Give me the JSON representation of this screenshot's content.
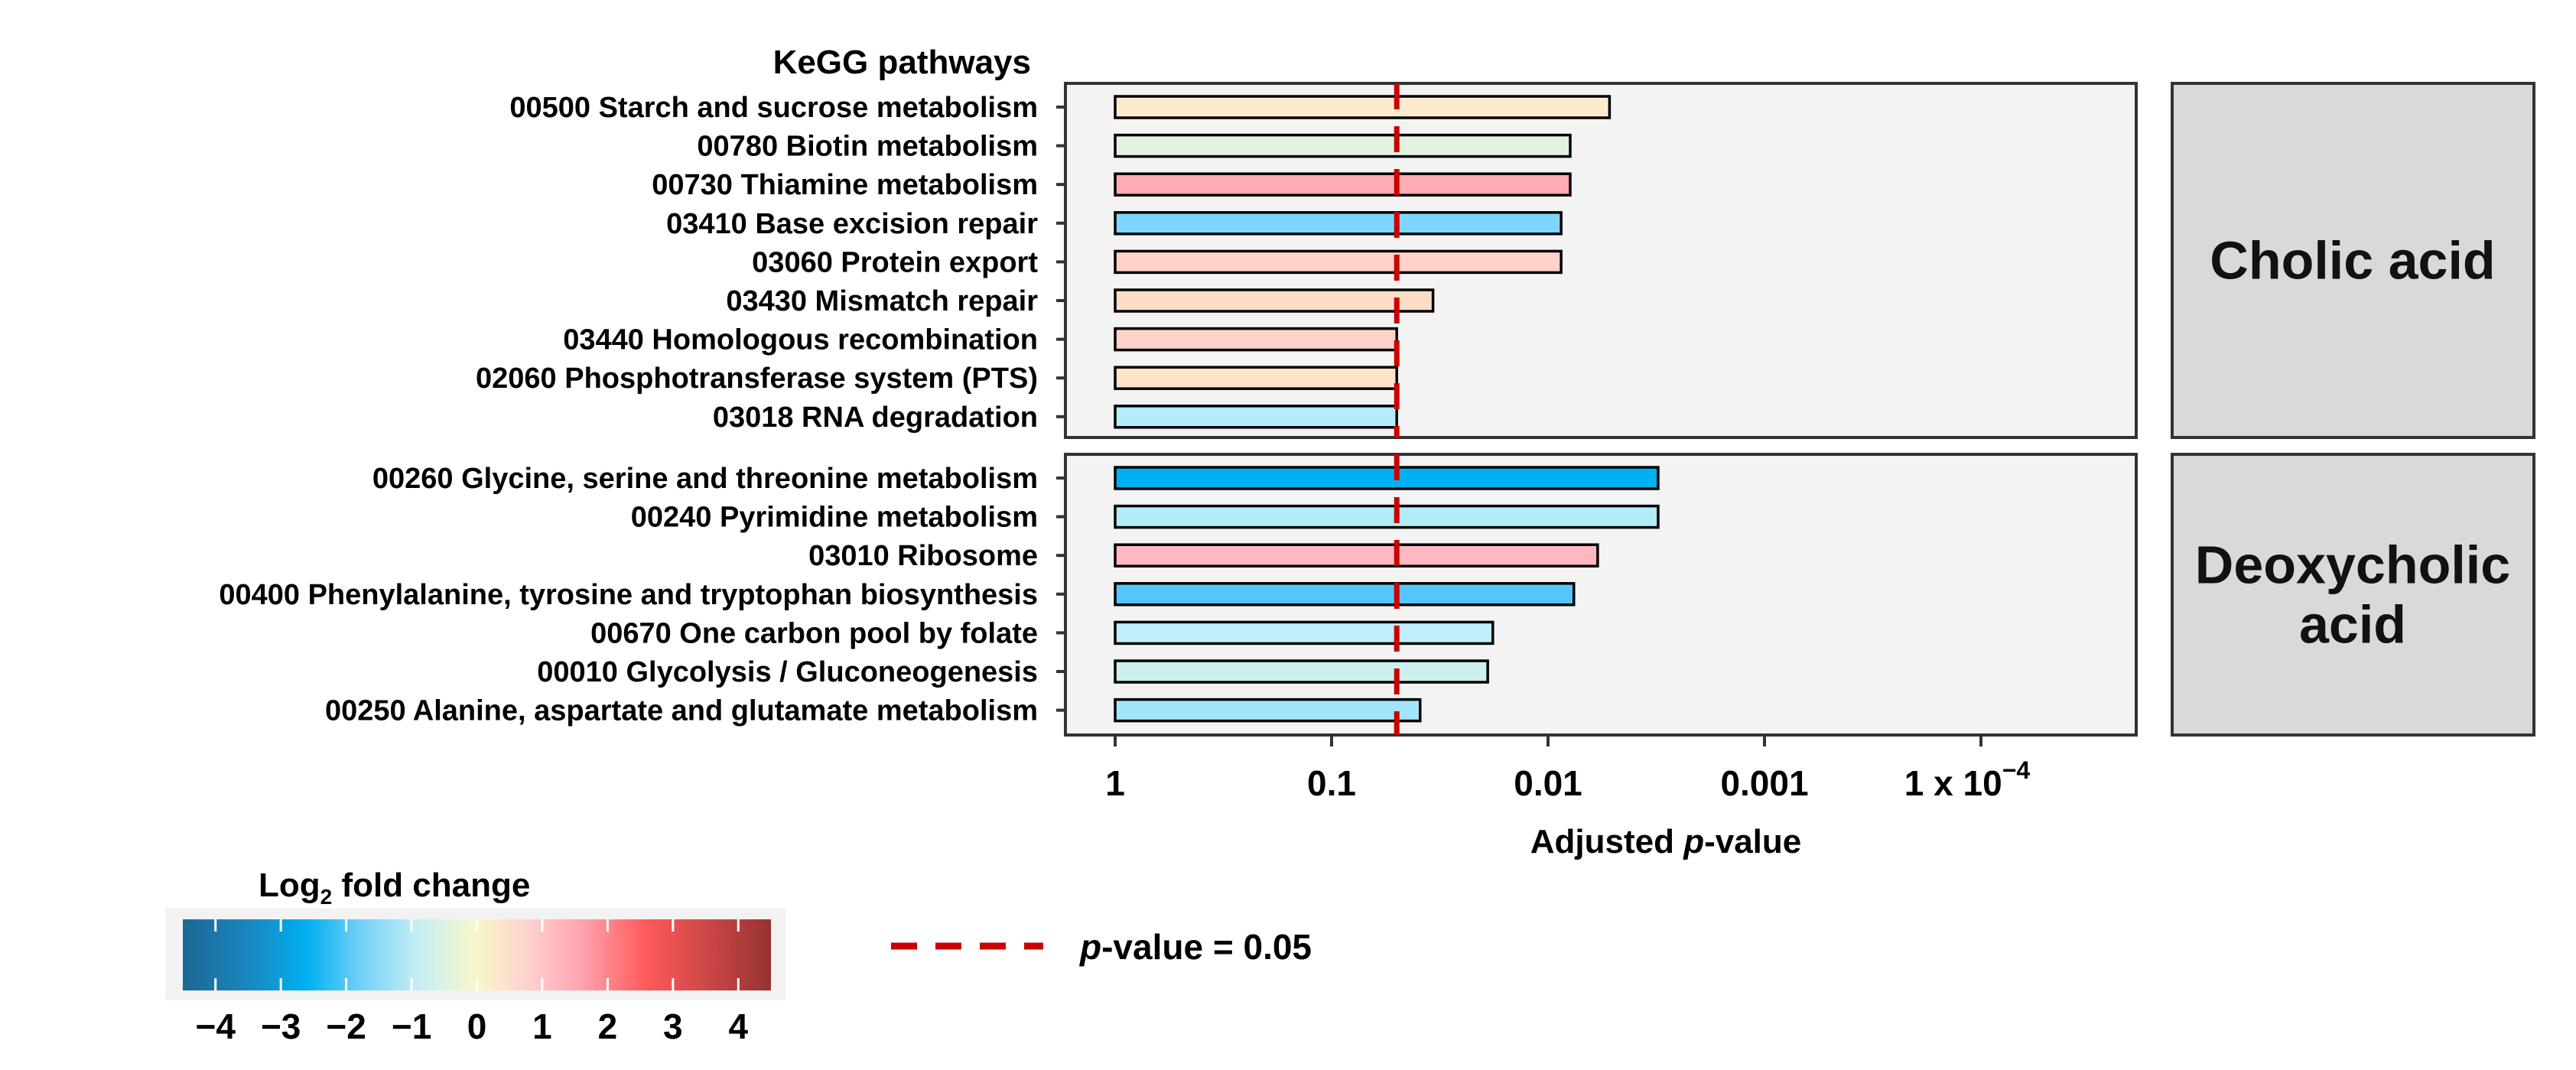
{
  "chart_data": {
    "type": "bar",
    "orientation": "horizontal",
    "ylabel": "KeGG pathways",
    "xlabel": {
      "pre": "Adjusted ",
      "italic": "p",
      "post": "-value"
    },
    "x_scale": "log10, reversed (adjusted p-value decreasing to the right)",
    "xlim": [
      1.7,
      1.9e-05
    ],
    "x_ticks": [
      {
        "value": 1,
        "label": "1",
        "sup": ""
      },
      {
        "value": 0.1,
        "label": "0.1",
        "sup": ""
      },
      {
        "value": 0.01,
        "label": "0.01",
        "sup": ""
      },
      {
        "value": 0.001,
        "label": "0.001",
        "sup": ""
      },
      {
        "value": 0.0001,
        "label": "1 x 10",
        "sup": "−4"
      }
    ],
    "grid": false,
    "threshold": {
      "value": 0.05,
      "color": "#cc0000",
      "legend": {
        "italic": "p",
        "text": "-value = 0.05"
      }
    },
    "facets": [
      {
        "name": "Cholic acid",
        "name_lines": [
          "Cholic acid"
        ],
        "pathways": [
          {
            "label": "00500 Starch and sucrose metabolism",
            "adjusted_p": 0.0052,
            "log2fc": 0.3,
            "color": "#fdebd0"
          },
          {
            "label": "00780 Biotin metabolism",
            "adjusted_p": 0.0079,
            "log2fc": -0.4,
            "color": "#e2f2e0"
          },
          {
            "label": "00730 Thiamine metabolism",
            "adjusted_p": 0.0079,
            "log2fc": 1.7,
            "color": "#ffabb1"
          },
          {
            "label": "03410 Base excision repair",
            "adjusted_p": 0.0087,
            "log2fc": -2.2,
            "color": "#7fd6fd"
          },
          {
            "label": "03060 Protein export",
            "adjusted_p": 0.0087,
            "log2fc": 0.8,
            "color": "#ffd1c9"
          },
          {
            "label": "03430 Mismatch repair",
            "adjusted_p": 0.034,
            "log2fc": 0.5,
            "color": "#ffdcc6"
          },
          {
            "label": "03440 Homologous recombination",
            "adjusted_p": 0.05,
            "log2fc": 0.8,
            "color": "#ffd3ca"
          },
          {
            "label": "02060 Phosphotransferase system (PTS)",
            "adjusted_p": 0.05,
            "log2fc": 0.4,
            "color": "#ffe3c8"
          },
          {
            "label": "03018 RNA degradation",
            "adjusted_p": 0.05,
            "log2fc": -1.2,
            "color": "#b3ecfb"
          }
        ]
      },
      {
        "name": "Deoxycholic acid",
        "name_lines": [
          "Deoxycholic",
          "acid"
        ],
        "pathways": [
          {
            "label": "00260 Glycine, serine and threonine metabolism",
            "adjusted_p": 0.0031,
            "log2fc": -2.6,
            "color": "#00b0f0"
          },
          {
            "label": "00240 Pyrimidine metabolism",
            "adjusted_p": 0.0031,
            "log2fc": -1.3,
            "color": "#b1ecf8"
          },
          {
            "label": "03010 Ribosome",
            "adjusted_p": 0.0059,
            "log2fc": 1.5,
            "color": "#ffb8c0"
          },
          {
            "label": "00400 Phenylalanine, tyrosine and tryptophan biosynthesis",
            "adjusted_p": 0.0076,
            "log2fc": -2.3,
            "color": "#55c6fb"
          },
          {
            "label": "00670 One carbon pool by folate",
            "adjusted_p": 0.018,
            "log2fc": -1.1,
            "color": "#bfeffa"
          },
          {
            "label": "00010 Glycolysis / Gluconeogenesis",
            "adjusted_p": 0.019,
            "log2fc": -0.8,
            "color": "#ccf0ef"
          },
          {
            "label": "00250 Alanine, aspartate and glutamate metabolism",
            "adjusted_p": 0.039,
            "log2fc": -1.5,
            "color": "#a3e6fc"
          }
        ]
      }
    ],
    "colorbar": {
      "title": {
        "main": "Log",
        "sub": "2",
        "rest": " fold change"
      },
      "ticks": [
        {
          "value": -4,
          "label": "−4"
        },
        {
          "value": -3,
          "label": "−3"
        },
        {
          "value": -2,
          "label": "−2"
        },
        {
          "value": -1,
          "label": "−1"
        },
        {
          "value": 0,
          "label": "0"
        },
        {
          "value": 1,
          "label": "1"
        },
        {
          "value": 2,
          "label": "2"
        },
        {
          "value": 3,
          "label": "3"
        },
        {
          "value": 4,
          "label": "4"
        }
      ],
      "range": [
        -4.5,
        4.5
      ],
      "stops": [
        {
          "value": -4.5,
          "color": "#1b6894"
        },
        {
          "value": -3.5,
          "color": "#1a86bf"
        },
        {
          "value": -2.6,
          "color": "#00b0f0"
        },
        {
          "value": -1.8,
          "color": "#6fd0f7"
        },
        {
          "value": -0.9,
          "color": "#c6eef6"
        },
        {
          "value": 0,
          "color": "#f8f7c8"
        },
        {
          "value": 0.8,
          "color": "#ffd1cf"
        },
        {
          "value": 1.6,
          "color": "#ffa3b0"
        },
        {
          "value": 2.6,
          "color": "#ff5a5a"
        },
        {
          "value": 4.5,
          "color": "#973232"
        }
      ],
      "legend_position": "bottom-left"
    },
    "colors": {
      "panel_bg": "#f3f3f3",
      "strip_bg": "#d9d9d9",
      "border": "#333333"
    }
  }
}
